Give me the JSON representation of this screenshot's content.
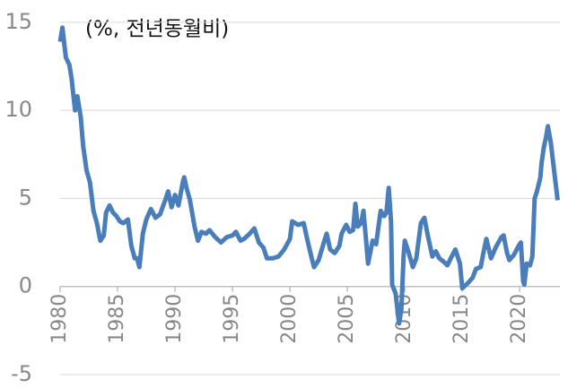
{
  "chart_data": {
    "type": "line",
    "title": "(%, 전년동월비)",
    "x": [
      1980.0,
      1980.2,
      1980.5,
      1980.8,
      1981.0,
      1981.3,
      1981.5,
      1981.8,
      1982.0,
      1982.3,
      1982.6,
      1982.9,
      1983.2,
      1983.5,
      1983.8,
      1984.0,
      1984.3,
      1984.6,
      1984.9,
      1985.2,
      1985.5,
      1985.9,
      1986.2,
      1986.5,
      1986.7,
      1986.9,
      1987.2,
      1987.5,
      1987.9,
      1988.3,
      1988.7,
      1989.2,
      1989.4,
      1989.7,
      1990.0,
      1990.3,
      1990.7,
      1990.8,
      1991.0,
      1991.3,
      1991.7,
      1992.0,
      1992.3,
      1992.7,
      1993.0,
      1993.5,
      1994.0,
      1994.5,
      1995.0,
      1995.3,
      1995.7,
      1996.0,
      1996.5,
      1996.9,
      1997.3,
      1997.7,
      1998.0,
      1998.5,
      1999.0,
      1999.5,
      2000.0,
      2000.2,
      2000.7,
      2001.2,
      2001.5,
      2001.9,
      2002.1,
      2002.5,
      2003.0,
      2003.2,
      2003.5,
      2003.9,
      2004.3,
      2004.5,
      2004.9,
      2005.2,
      2005.5,
      2005.7,
      2005.9,
      2006.2,
      2006.4,
      2006.7,
      2006.8,
      2007.2,
      2007.5,
      2007.9,
      2008.2,
      2008.4,
      2008.6,
      2008.8,
      2008.9,
      2009.2,
      2009.5,
      2009.7,
      2009.9,
      2010.0,
      2010.3,
      2010.7,
      2011.0,
      2011.4,
      2011.7,
      2012.0,
      2012.4,
      2012.7,
      2013.0,
      2013.4,
      2013.7,
      2014.0,
      2014.4,
      2014.8,
      2015.0,
      2015.5,
      2015.9,
      2016.2,
      2016.6,
      2016.9,
      2017.1,
      2017.5,
      2017.9,
      2018.4,
      2018.6,
      2018.9,
      2019.1,
      2019.5,
      2019.9,
      2020.1,
      2020.3,
      2020.4,
      2020.6,
      2020.9,
      2021.1,
      2021.3,
      2021.5,
      2021.8,
      2021.9,
      2022.1,
      2022.3,
      2022.45,
      2022.7,
      2022.9,
      2023.1,
      2023.3
    ],
    "series": [
      {
        "color": "#4a7ebb",
        "values": [
          13.9,
          14.7,
          13.0,
          12.6,
          11.8,
          10.0,
          10.8,
          9.6,
          8.0,
          6.6,
          5.9,
          4.3,
          3.6,
          2.6,
          2.9,
          4.2,
          4.6,
          4.2,
          4.0,
          3.7,
          3.6,
          3.8,
          2.3,
          1.6,
          1.6,
          1.1,
          3.0,
          3.8,
          4.4,
          3.9,
          4.1,
          5.0,
          5.4,
          4.5,
          5.2,
          4.6,
          6.0,
          6.2,
          5.6,
          4.9,
          3.4,
          2.6,
          3.1,
          3.0,
          3.2,
          2.8,
          2.5,
          2.8,
          2.9,
          3.1,
          2.6,
          2.7,
          3.0,
          3.3,
          2.5,
          2.2,
          1.6,
          1.6,
          1.7,
          2.1,
          2.7,
          3.7,
          3.5,
          3.6,
          2.7,
          1.6,
          1.1,
          1.5,
          2.6,
          3.0,
          2.1,
          1.9,
          2.3,
          3.0,
          3.5,
          3.1,
          3.2,
          4.7,
          3.4,
          3.6,
          4.3,
          2.1,
          1.3,
          2.6,
          2.4,
          4.3,
          4.0,
          4.2,
          5.6,
          3.7,
          0.1,
          -0.4,
          -2.1,
          -1.3,
          1.8,
          2.6,
          2.0,
          1.1,
          1.6,
          3.6,
          3.9,
          2.9,
          1.7,
          2.0,
          1.6,
          1.4,
          1.2,
          1.6,
          2.1,
          1.3,
          -0.1,
          0.2,
          0.5,
          1.0,
          1.1,
          2.1,
          2.7,
          1.6,
          2.2,
          2.8,
          2.9,
          1.9,
          1.5,
          1.8,
          2.3,
          2.5,
          0.3,
          0.1,
          1.3,
          1.2,
          1.7,
          5.0,
          5.4,
          6.2,
          7.0,
          7.9,
          8.5,
          9.1,
          8.2,
          7.1,
          6.0,
          4.9
        ]
      }
    ],
    "xlim": [
      1980,
      2023.5
    ],
    "xticks": [
      1980,
      1985,
      1990,
      1995,
      2000,
      2005,
      2010,
      2015,
      2020
    ],
    "ylim": [
      -5,
      15.3
    ],
    "yticks": [
      -5,
      0,
      5,
      10,
      15
    ],
    "grid": true
  }
}
